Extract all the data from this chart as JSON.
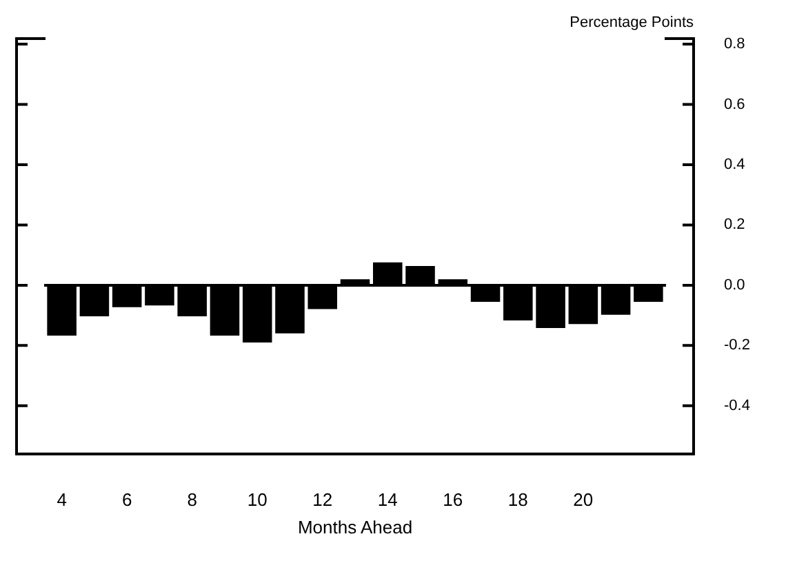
{
  "chart_data": {
    "type": "bar",
    "xlabel": "Months Ahead",
    "ylabel": "Percentage Points",
    "categories": [
      "4",
      null,
      "6",
      null,
      "8",
      null,
      "10",
      null,
      "12",
      null,
      "14",
      null,
      "16",
      null,
      "18",
      null,
      "20",
      null,
      null
    ],
    "values": [
      -0.167,
      -0.103,
      -0.073,
      -0.067,
      -0.103,
      -0.167,
      -0.19,
      -0.16,
      -0.079,
      0.02,
      0.076,
      0.064,
      0.02,
      -0.055,
      -0.117,
      -0.142,
      -0.129,
      -0.098,
      -0.055
    ],
    "color": "#000000",
    "ylim": [
      -0.56,
      0.8
    ],
    "yticks": [
      {
        "value": 0.8,
        "label": "0.8"
      },
      {
        "value": 0.6,
        "label": "0.6"
      },
      {
        "value": 0.4,
        "label": "0.4"
      },
      {
        "value": 0.2,
        "label": "0.2"
      },
      {
        "value": 0,
        "label": "0.0"
      },
      {
        "value": -0.2,
        "label": "-0.2"
      },
      {
        "value": -0.4,
        "label": "-0.4"
      }
    ],
    "legend": false
  }
}
